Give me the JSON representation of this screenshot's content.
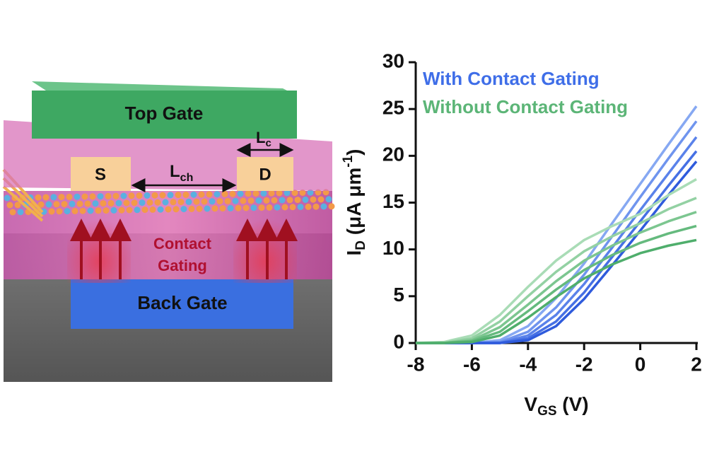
{
  "diagram": {
    "top_gate": "Top Gate",
    "source": "S",
    "drain": "D",
    "channel_length": {
      "main": "L",
      "sub": "ch"
    },
    "contact_length": {
      "main": "L",
      "sub": "c"
    },
    "contact_gating": [
      "Contact",
      "Gating"
    ],
    "back_gate": "Back Gate"
  },
  "chart_data": {
    "type": "line",
    "x_label": {
      "main": "V",
      "sub": "GS",
      "rest": " (V)"
    },
    "y_label": {
      "main": "I",
      "sub": "D",
      "rest": " (μA μm",
      "sup": "-1",
      "end": ")"
    },
    "x": [
      -8,
      -7,
      -6,
      -5,
      -4,
      -3,
      -2,
      -1,
      0,
      1,
      2
    ],
    "xlim": [
      -8,
      2
    ],
    "xticks": [
      -8,
      -6,
      -4,
      -2,
      0,
      2
    ],
    "ylim": [
      0,
      30
    ],
    "yticks": [
      0,
      5,
      10,
      15,
      20,
      25,
      30
    ],
    "legend": "top-left",
    "series": [
      {
        "name": "With Contact Gating",
        "color": "#3f6ee8",
        "curves": [
          {
            "color": "#86a8f2",
            "values": [
              0,
              0,
              0,
              0.3,
              1.8,
              4.8,
              8.5,
              12.8,
              17,
              21.2,
              25.3
            ]
          },
          {
            "color": "#6f94ee",
            "values": [
              0,
              0,
              0,
              0.1,
              1.2,
              3.8,
              7.3,
              11.4,
              15.6,
              19.7,
              23.7
            ]
          },
          {
            "color": "#5a82ea",
            "values": [
              0,
              0,
              0,
              0,
              0.8,
              3,
              6.3,
              10.2,
              14.2,
              18.1,
              22
            ]
          },
          {
            "color": "#4670e4",
            "values": [
              0,
              0,
              0,
              0,
              0.5,
              2.3,
              5.4,
              9.2,
              13,
              16.8,
              20.5
            ]
          },
          {
            "color": "#2f5bdc",
            "values": [
              0,
              0,
              0,
              0,
              0.3,
              1.8,
              4.7,
              8.3,
              12,
              15.8,
              19.4
            ]
          }
        ]
      },
      {
        "name": "Without Contact Gating",
        "color": "#5cb577",
        "curves": [
          {
            "color": "#a9dcb6",
            "values": [
              0,
              0.1,
              0.8,
              3,
              6,
              8.8,
              11,
              12.5,
              13.8,
              15.8,
              17.5
            ]
          },
          {
            "color": "#93d1a3",
            "values": [
              0,
              0,
              0.5,
              2.3,
              5,
              7.6,
              9.8,
              11.4,
              12.8,
              14.3,
              15.5
            ]
          },
          {
            "color": "#7cc690",
            "values": [
              0,
              0,
              0.3,
              1.7,
              4.1,
              6.6,
              8.8,
              10.4,
              11.8,
              13,
              14
            ]
          },
          {
            "color": "#65ba7e",
            "values": [
              0,
              0,
              0.2,
              1.2,
              3.4,
              5.7,
              7.8,
              9.4,
              10.7,
              11.7,
              12.5
            ]
          },
          {
            "color": "#4fae6c",
            "values": [
              0,
              0,
              0.1,
              0.8,
              2.7,
              4.9,
              6.9,
              8.4,
              9.6,
              10.4,
              11
            ]
          }
        ]
      }
    ]
  }
}
